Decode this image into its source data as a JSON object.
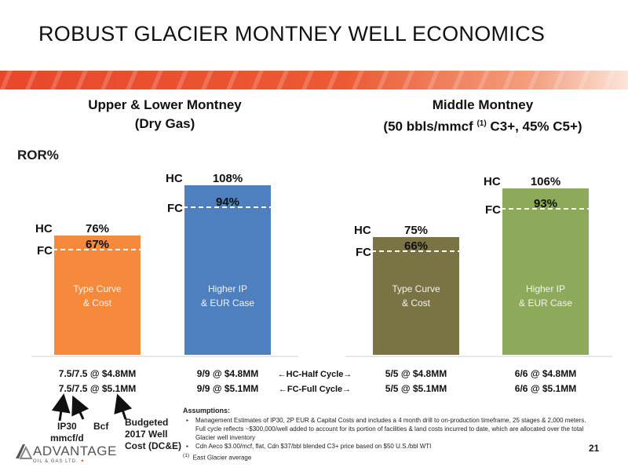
{
  "slide": {
    "title": "ROBUST GLACIER MONTNEY WELL ECONOMICS",
    "page_number": "21",
    "logo": {
      "name": "ADVANTAGE",
      "sub": "OIL & GAS LTD."
    }
  },
  "columns": [
    {
      "title_line1": "Upper & Lower Montney",
      "title_line2": "(Dry Gas)"
    },
    {
      "title_line1": "Middle Montney",
      "title_line2_pre": "(50 bbls/mmcf ",
      "title_line2_sup": "(1)",
      "title_line2_post": " C3+, 45% C5+)"
    }
  ],
  "ror_label": "ROR%",
  "colors": {
    "banner": "#e8472c",
    "type_curve_dry": "#f58a3c",
    "higher_ip_dry": "#4e7fbf",
    "type_curve_middle": "#7a7343",
    "higher_ip_middle": "#8caa5a"
  },
  "chart_data": {
    "type": "bar",
    "y_unit": "ROR%",
    "hc_label": "HC",
    "fc_label": "FC",
    "bars": [
      {
        "group": "Upper & Lower Montney",
        "label_line1": "Type Curve",
        "label_line2": "& Cost",
        "hc": 76,
        "fc": 67,
        "hc_text": "76%",
        "fc_text": "67%",
        "color": "#f58a3c",
        "half_cycle": "7.5/7.5 @ $4.8MM",
        "full_cycle": "7.5/7.5 @ $5.1MM"
      },
      {
        "group": "Upper & Lower Montney",
        "label_line1": "Higher IP",
        "label_line2": "& EUR Case",
        "hc": 108,
        "fc": 94,
        "hc_text": "108%",
        "fc_text": "94%",
        "color": "#4e7fbf",
        "half_cycle": "9/9 @ $4.8MM",
        "full_cycle": "9/9 @ $5.1MM"
      },
      {
        "group": "Middle Montney",
        "label_line1": "Type Curve",
        "label_line2": "& Cost",
        "hc": 75,
        "fc": 66,
        "hc_text": "75%",
        "fc_text": "66%",
        "color": "#7a7343",
        "half_cycle": "5/5 @ $4.8MM",
        "full_cycle": "5/5 @ $5.1MM"
      },
      {
        "group": "Middle Montney",
        "label_line1": "Higher IP",
        "label_line2": "& EUR Case",
        "hc": 106,
        "fc": 93,
        "hc_text": "106%",
        "fc_text": "93%",
        "color": "#8caa5a",
        "half_cycle": "6/6 @ $4.8MM",
        "full_cycle": "6/6 @ $5.1MM"
      }
    ],
    "row_labels": {
      "half_cycle": "←HC-Half Cycle→",
      "full_cycle": "←FC-Full Cycle→"
    }
  },
  "legend": {
    "ip30": "IP30 mmcf/d",
    "ip30_line1": "IP30",
    "ip30_line2": "mmcf/d",
    "bcf": "Bcf",
    "budget_line1": "Budgeted",
    "budget_line2": "2017 Well",
    "budget_line3": "Cost (DC&E)"
  },
  "assumptions": {
    "heading": "Assumptions:",
    "bullets": [
      "Management Estimates of IP30, 2P EUR & Capital Costs and includes a 4 month drill to on-production timeframe, 25 stages & 2,000 meters. Full cycle reflects ~$300,000/well added to account for its portion of facilities & land costs incurred to date, which are allocated over the total Glacier well inventory",
      "Cdn Aeco $3.00/mcf, flat, Cdn $37/bbl blended C3+ price based on $50 U.S./bbl WTI"
    ],
    "footnote_mark": "(1)",
    "footnote": "East Glacier average"
  }
}
